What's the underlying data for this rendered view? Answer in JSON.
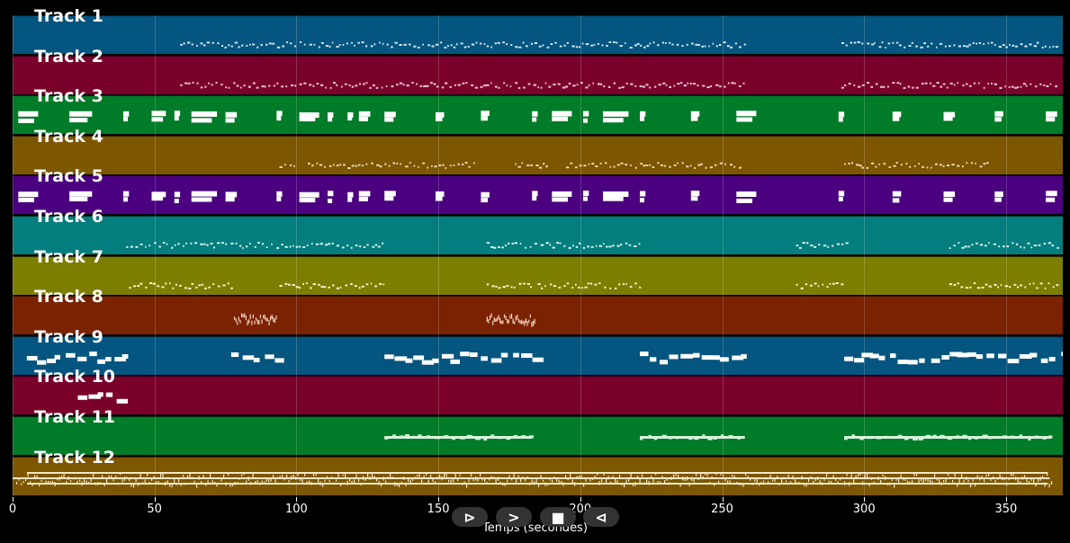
{
  "window": {
    "xlabel": "Temps (secondes)",
    "x_ticks": [
      "0",
      "50",
      "100",
      "150",
      "200",
      "250",
      "300",
      "350"
    ],
    "x_range_seconds": [
      0,
      370
    ]
  },
  "controls": {
    "play_icon": "play-icon",
    "forward_icon": "fast-forward-icon",
    "stop_icon": "stop-icon",
    "back_icon": "rewind-icon",
    "play_label": "⊳",
    "forward_label": ">",
    "stop_label": "■",
    "back_label": "⊲"
  },
  "tracks": [
    {
      "label": "Track 1",
      "color": "#04557f",
      "note_color": "#cfe6ef",
      "segments": [
        [
          59,
          258
        ],
        [
          292,
          368
        ]
      ],
      "style": "sparse"
    },
    {
      "label": "Track 2",
      "color": "#7a002c",
      "note_color": "#efc8d2",
      "segments": [
        [
          59,
          258
        ],
        [
          292,
          368
        ]
      ],
      "style": "sparse"
    },
    {
      "label": "Track 3",
      "color": "#007b27",
      "note_color": "#ffffff",
      "segments": [
        [
          2,
          9
        ],
        [
          20,
          28
        ],
        [
          39,
          41
        ],
        [
          49,
          54
        ],
        [
          57,
          59
        ],
        [
          63,
          72
        ],
        [
          75,
          79
        ],
        [
          93,
          95
        ],
        [
          101,
          108
        ],
        [
          111,
          113
        ],
        [
          118,
          120
        ],
        [
          122,
          126
        ],
        [
          131,
          135
        ],
        [
          149,
          152
        ],
        [
          165,
          168
        ],
        [
          183,
          185
        ],
        [
          190,
          197
        ],
        [
          201,
          203
        ],
        [
          208,
          217
        ],
        [
          221,
          223
        ],
        [
          239,
          242
        ],
        [
          255,
          262
        ],
        [
          291,
          293
        ],
        [
          310,
          313
        ],
        [
          328,
          332
        ],
        [
          346,
          349
        ],
        [
          364,
          368
        ]
      ],
      "style": "blocks"
    },
    {
      "label": "Track 4",
      "color": "#7d5600",
      "note_color": "#e8d7b0",
      "segments": [
        [
          94,
          100
        ],
        [
          104,
          117
        ],
        [
          118,
          164
        ],
        [
          177,
          188
        ],
        [
          195,
          212
        ],
        [
          213,
          256
        ],
        [
          293,
          344
        ]
      ],
      "style": "sparse"
    },
    {
      "label": "Track 5",
      "color": "#4b007f",
      "note_color": "#ffffff",
      "segments": [
        [
          2,
          9
        ],
        [
          20,
          28
        ],
        [
          39,
          41
        ],
        [
          49,
          54
        ],
        [
          57,
          59
        ],
        [
          63,
          72
        ],
        [
          75,
          79
        ],
        [
          93,
          95
        ],
        [
          101,
          108
        ],
        [
          111,
          113
        ],
        [
          118,
          120
        ],
        [
          122,
          126
        ],
        [
          131,
          135
        ],
        [
          149,
          152
        ],
        [
          165,
          168
        ],
        [
          183,
          185
        ],
        [
          190,
          197
        ],
        [
          201,
          203
        ],
        [
          208,
          217
        ],
        [
          221,
          223
        ],
        [
          239,
          242
        ],
        [
          255,
          262
        ],
        [
          291,
          293
        ],
        [
          310,
          313
        ],
        [
          328,
          332
        ],
        [
          346,
          349
        ],
        [
          364,
          368
        ]
      ],
      "style": "blocks"
    },
    {
      "label": "Track 6",
      "color": "#037d7d",
      "note_color": "#d6f0f0",
      "segments": [
        [
          40,
          92
        ],
        [
          93,
          131
        ],
        [
          167,
          185
        ],
        [
          186,
          221
        ],
        [
          276,
          294
        ],
        [
          330,
          368
        ]
      ],
      "style": "sparse"
    },
    {
      "label": "Track 7",
      "color": "#7d7d00",
      "note_color": "#f2f2c8",
      "segments": [
        [
          41,
          77
        ],
        [
          94,
          131
        ],
        [
          167,
          184
        ],
        [
          185,
          221
        ],
        [
          276,
          293
        ],
        [
          330,
          368
        ]
      ],
      "style": "sparse"
    },
    {
      "label": "Track 8",
      "color": "#7b2200",
      "note_color": "#f2d3c5",
      "segments": [
        [
          78,
          93
        ],
        [
          167,
          184
        ]
      ],
      "style": "dense"
    },
    {
      "label": "Track 9",
      "color": "#04557f",
      "note_color": "#ffffff",
      "segments": [
        [
          5,
          41
        ],
        [
          77,
          95
        ],
        [
          131,
          185
        ],
        [
          221,
          258
        ],
        [
          293,
          370
        ]
      ],
      "style": "blocks"
    },
    {
      "label": "Track 10",
      "color": "#7a002c",
      "note_color": "#ffffff",
      "segments": [
        [
          23,
          41
        ]
      ],
      "style": "blocks"
    },
    {
      "label": "Track 11",
      "color": "#007b27",
      "note_color": "#d9f2df",
      "segments": [
        [
          131,
          183
        ],
        [
          221,
          258
        ],
        [
          293,
          366
        ]
      ],
      "style": "line"
    },
    {
      "label": "Track 12",
      "color": "#7d5600",
      "note_color": "#f4e6c5",
      "segments": [
        [
          0,
          366
        ]
      ],
      "style": "carpet"
    }
  ]
}
